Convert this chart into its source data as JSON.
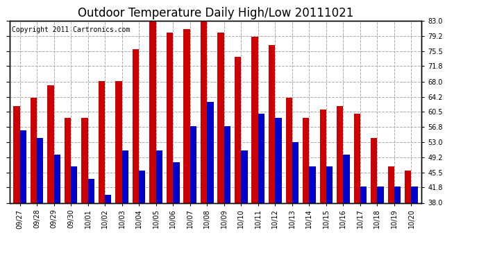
{
  "title": "Outdoor Temperature Daily High/Low 20111021",
  "copyright": "Copyright 2011 Cartronics.com",
  "labels": [
    "09/27",
    "09/28",
    "09/29",
    "09/30",
    "10/01",
    "10/02",
    "10/03",
    "10/04",
    "10/05",
    "10/06",
    "10/07",
    "10/08",
    "10/09",
    "10/10",
    "10/11",
    "10/12",
    "10/13",
    "10/14",
    "10/15",
    "10/16",
    "10/17",
    "10/18",
    "10/19",
    "10/20"
  ],
  "highs": [
    62,
    64,
    67,
    59,
    59,
    68,
    68,
    76,
    83,
    80,
    81,
    83,
    80,
    74,
    79,
    77,
    64,
    59,
    61,
    62,
    60,
    54,
    47,
    46
  ],
  "lows": [
    56,
    54,
    50,
    47,
    44,
    40,
    51,
    46,
    51,
    48,
    57,
    63,
    57,
    51,
    60,
    59,
    53,
    47,
    47,
    50,
    42,
    42,
    42,
    42
  ],
  "high_color": "#cc0000",
  "low_color": "#0000cc",
  "bg_color": "#ffffff",
  "grid_color": "#aaaaaa",
  "yticks": [
    38.0,
    41.8,
    45.5,
    49.2,
    53.0,
    56.8,
    60.5,
    64.2,
    68.0,
    71.8,
    75.5,
    79.2,
    83.0
  ],
  "ymin": 38.0,
  "ymax": 83.0,
  "title_fontsize": 12,
  "copyright_fontsize": 7,
  "tick_fontsize": 7,
  "bar_width": 0.38
}
